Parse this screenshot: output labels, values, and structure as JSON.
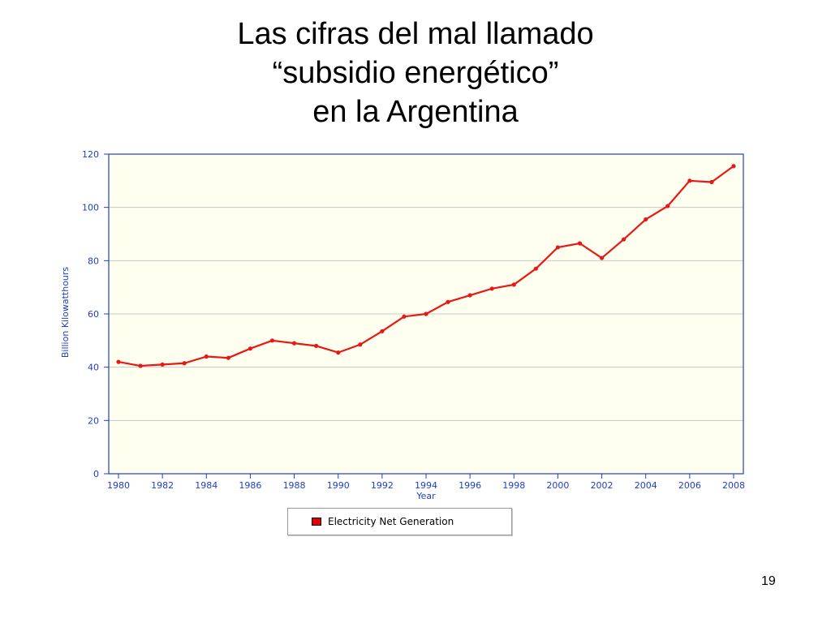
{
  "slide": {
    "title_lines": [
      "Las cifras del mal llamado",
      "“subsidio energético”",
      "en la Argentina"
    ],
    "page_number": "19"
  },
  "chart_data": {
    "type": "line",
    "xlabel": "Year",
    "ylabel": "Billion Kilowatthours",
    "xlim": [
      1980,
      2008
    ],
    "ylim": [
      0,
      120
    ],
    "x_ticks": [
      "1980",
      "1982",
      "1984",
      "1986",
      "1988",
      "1990",
      "1992",
      "1994",
      "1996",
      "1998",
      "2000",
      "2002",
      "2004",
      "2006",
      "2008"
    ],
    "y_ticks": [
      "0",
      "20",
      "40",
      "60",
      "80",
      "100",
      "120"
    ],
    "grid": true,
    "legend": {
      "placement": "bottom",
      "entries": [
        "Electricity Net Generation"
      ]
    },
    "colors": {
      "series": "#e61919",
      "plot_background": "#ffffef",
      "grid": "#c8c8c8",
      "axis": "#1f3fbf",
      "labels": "#1f3fbf"
    },
    "x": [
      1980,
      1981,
      1982,
      1983,
      1984,
      1985,
      1986,
      1987,
      1988,
      1989,
      1990,
      1991,
      1992,
      1993,
      1994,
      1995,
      1996,
      1997,
      1998,
      1999,
      2000,
      2001,
      2002,
      2003,
      2004,
      2005,
      2006,
      2007,
      2008
    ],
    "series": [
      {
        "name": "Electricity Net Generation",
        "values": [
          42,
          40.5,
          41,
          41.5,
          44,
          43.5,
          47,
          50,
          49,
          48,
          45.5,
          48.5,
          53.5,
          59,
          60,
          64.5,
          67,
          69.5,
          71,
          77,
          85,
          86.5,
          81,
          88,
          95.5,
          100.5,
          110,
          109.5,
          115.5
        ]
      }
    ]
  }
}
